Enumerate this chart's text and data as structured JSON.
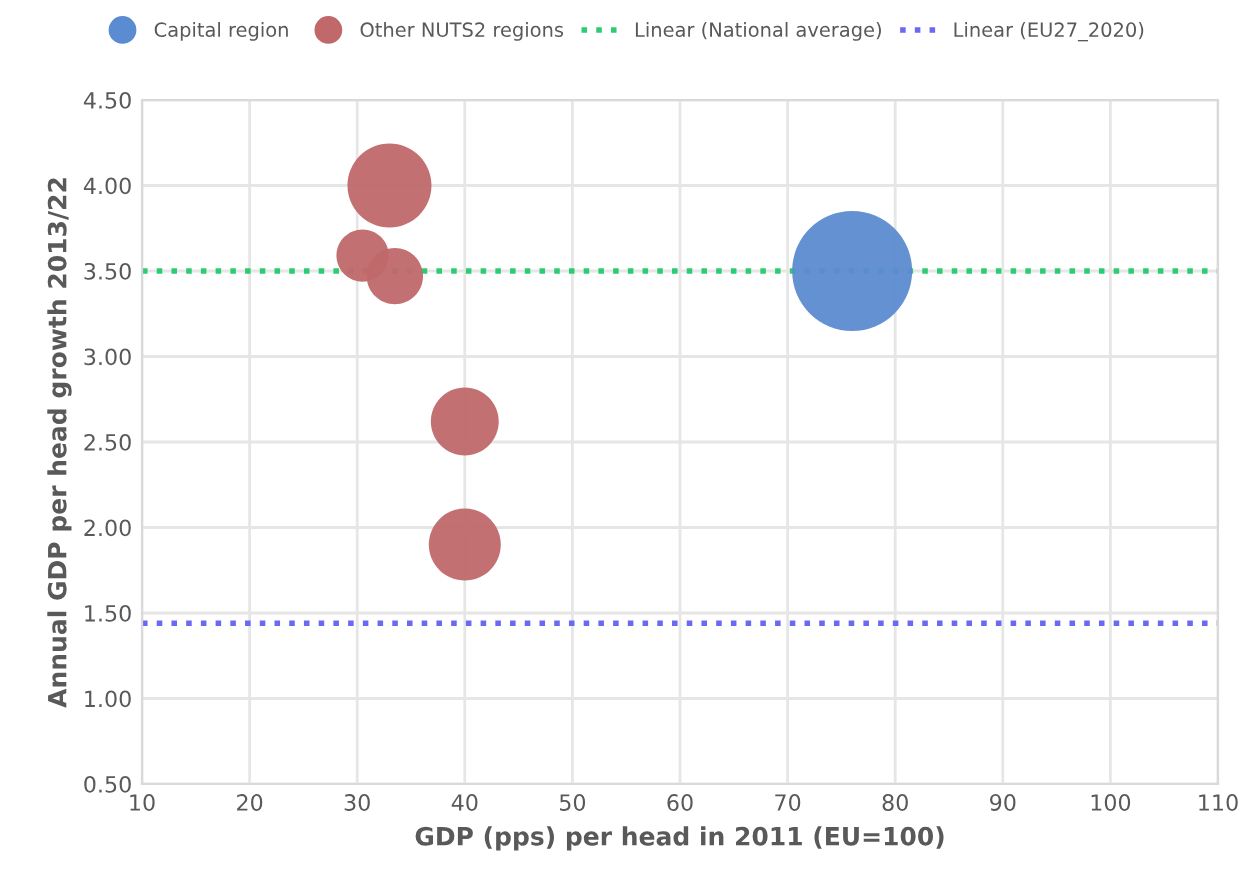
{
  "chart_data": {
    "type": "bubble",
    "xlabel": "GDP (pps) per head in 2011 (EU=100)",
    "ylabel": "Annual GDP per head growth 2013/22",
    "series": [
      {
        "name": "Capital region",
        "color": "#5b8bd0",
        "x": [
          76
        ],
        "values": [
          3.5
        ],
        "sizes": [
          1
        ]
      },
      {
        "name": "Other NUTS2 regions",
        "color": "#c0686a",
        "x": [
          33,
          30.5,
          33.5,
          40,
          40
        ],
        "values": [
          4.0,
          3.59,
          3.47,
          2.62,
          1.9
        ],
        "sizes": [
          0.49,
          0.19,
          0.22,
          0.32,
          0.36
        ]
      }
    ],
    "ref_lines": [
      {
        "axis": "y",
        "value": 3.5,
        "label": "Linear (National average)",
        "color": "#2ecc71",
        "line_style": "dotted"
      },
      {
        "axis": "y",
        "value": 1.44,
        "label": "Linear (EU27_2020)",
        "color": "#6a6af0",
        "line_style": "dotted"
      }
    ],
    "xlim": [
      10,
      110
    ],
    "xticks": [
      10,
      20,
      30,
      40,
      50,
      60,
      70,
      80,
      90,
      100,
      110
    ],
    "ylim": [
      0.5,
      4.5
    ],
    "yticks": [
      {
        "value": 0.5,
        "label": "0.50"
      },
      {
        "value": 1.0,
        "label": "1.00"
      },
      {
        "value": 1.5,
        "label": "1.50"
      },
      {
        "value": 2.0,
        "label": "2.00"
      },
      {
        "value": 2.5,
        "label": "2.50"
      },
      {
        "value": 3.0,
        "label": "3.00"
      },
      {
        "value": 3.5,
        "label": "3.50"
      },
      {
        "value": 4.0,
        "label": "4.00"
      },
      {
        "value": 4.5,
        "label": "4.50"
      }
    ],
    "grid": true,
    "legend": "top"
  }
}
